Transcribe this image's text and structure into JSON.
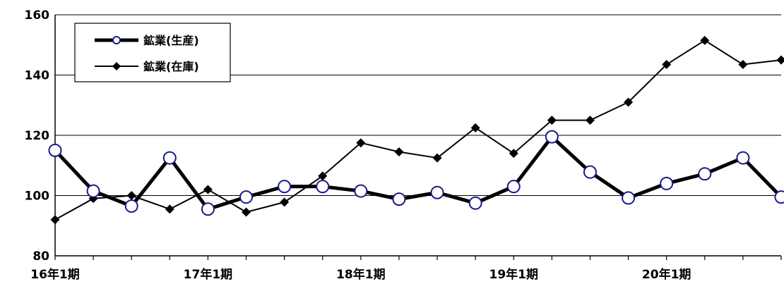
{
  "chart_data": {
    "type": "line",
    "title": "",
    "xlabel": "",
    "ylabel": "",
    "ylim": [
      80,
      160
    ],
    "yticks": [
      80,
      100,
      120,
      140,
      160
    ],
    "grid": {
      "horizontal": true,
      "vertical": false
    },
    "legend_position": "top-left",
    "x_count": 20,
    "x_tick_labels": [
      {
        "index": 0,
        "label": "16年1期"
      },
      {
        "index": 4,
        "label": "17年1期"
      },
      {
        "index": 8,
        "label": "18年1期"
      },
      {
        "index": 12,
        "label": "19年1期"
      },
      {
        "index": 16,
        "label": "20年1期"
      }
    ],
    "series": [
      {
        "name": "鉱業(生産)",
        "marker": "circle",
        "line_style": "thick",
        "color": "#000000",
        "marker_color": "#1a1a8a",
        "values": [
          115,
          101.5,
          96.5,
          112.5,
          95.5,
          99.5,
          103,
          103,
          101.5,
          98.8,
          101,
          97.5,
          103,
          119.5,
          107.8,
          99.2,
          104,
          107.2,
          112.5,
          99.5
        ]
      },
      {
        "name": "鉱業(在庫)",
        "marker": "diamond",
        "line_style": "thin",
        "color": "#000000",
        "values": [
          92,
          99,
          100,
          95.5,
          102,
          94.5,
          97.8,
          106.5,
          117.5,
          114.5,
          112.5,
          122.5,
          114,
          125,
          125,
          131,
          143.5,
          151.5,
          143.5,
          145
        ]
      }
    ]
  }
}
